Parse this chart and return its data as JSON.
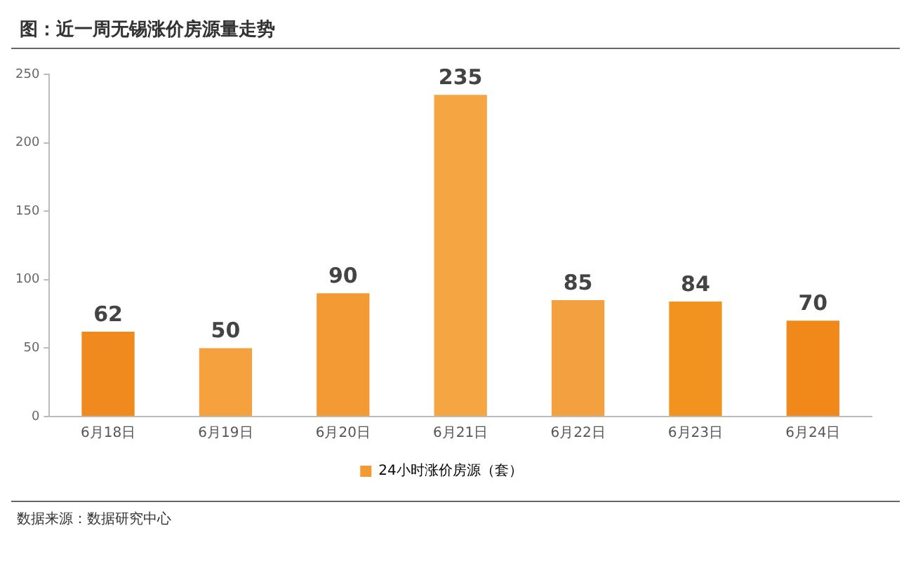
{
  "chart_data": {
    "type": "bar",
    "title": "图：近一周无锡涨价房源量走势",
    "categories": [
      "6月18日",
      "6月19日",
      "6月20日",
      "6月21日",
      "6月22日",
      "6月23日",
      "6月24日"
    ],
    "series": [
      {
        "name": "24小时涨价房源（套）",
        "color": "#f39a35",
        "colors": [
          "#f08a1e",
          "#f5a13d",
          "#f39a35",
          "#f5a643",
          "#f3a040",
          "#f2921f",
          "#f0891a"
        ],
        "values": [
          62,
          50,
          90,
          235,
          85,
          84,
          70
        ]
      }
    ],
    "ylim": [
      0,
      250
    ],
    "yticks": [
      0,
      50,
      100,
      150,
      200,
      250
    ],
    "grid": false,
    "legend": "bottom",
    "data_labels": true,
    "annotations": [
      "数据来源：数据研究中心"
    ]
  }
}
